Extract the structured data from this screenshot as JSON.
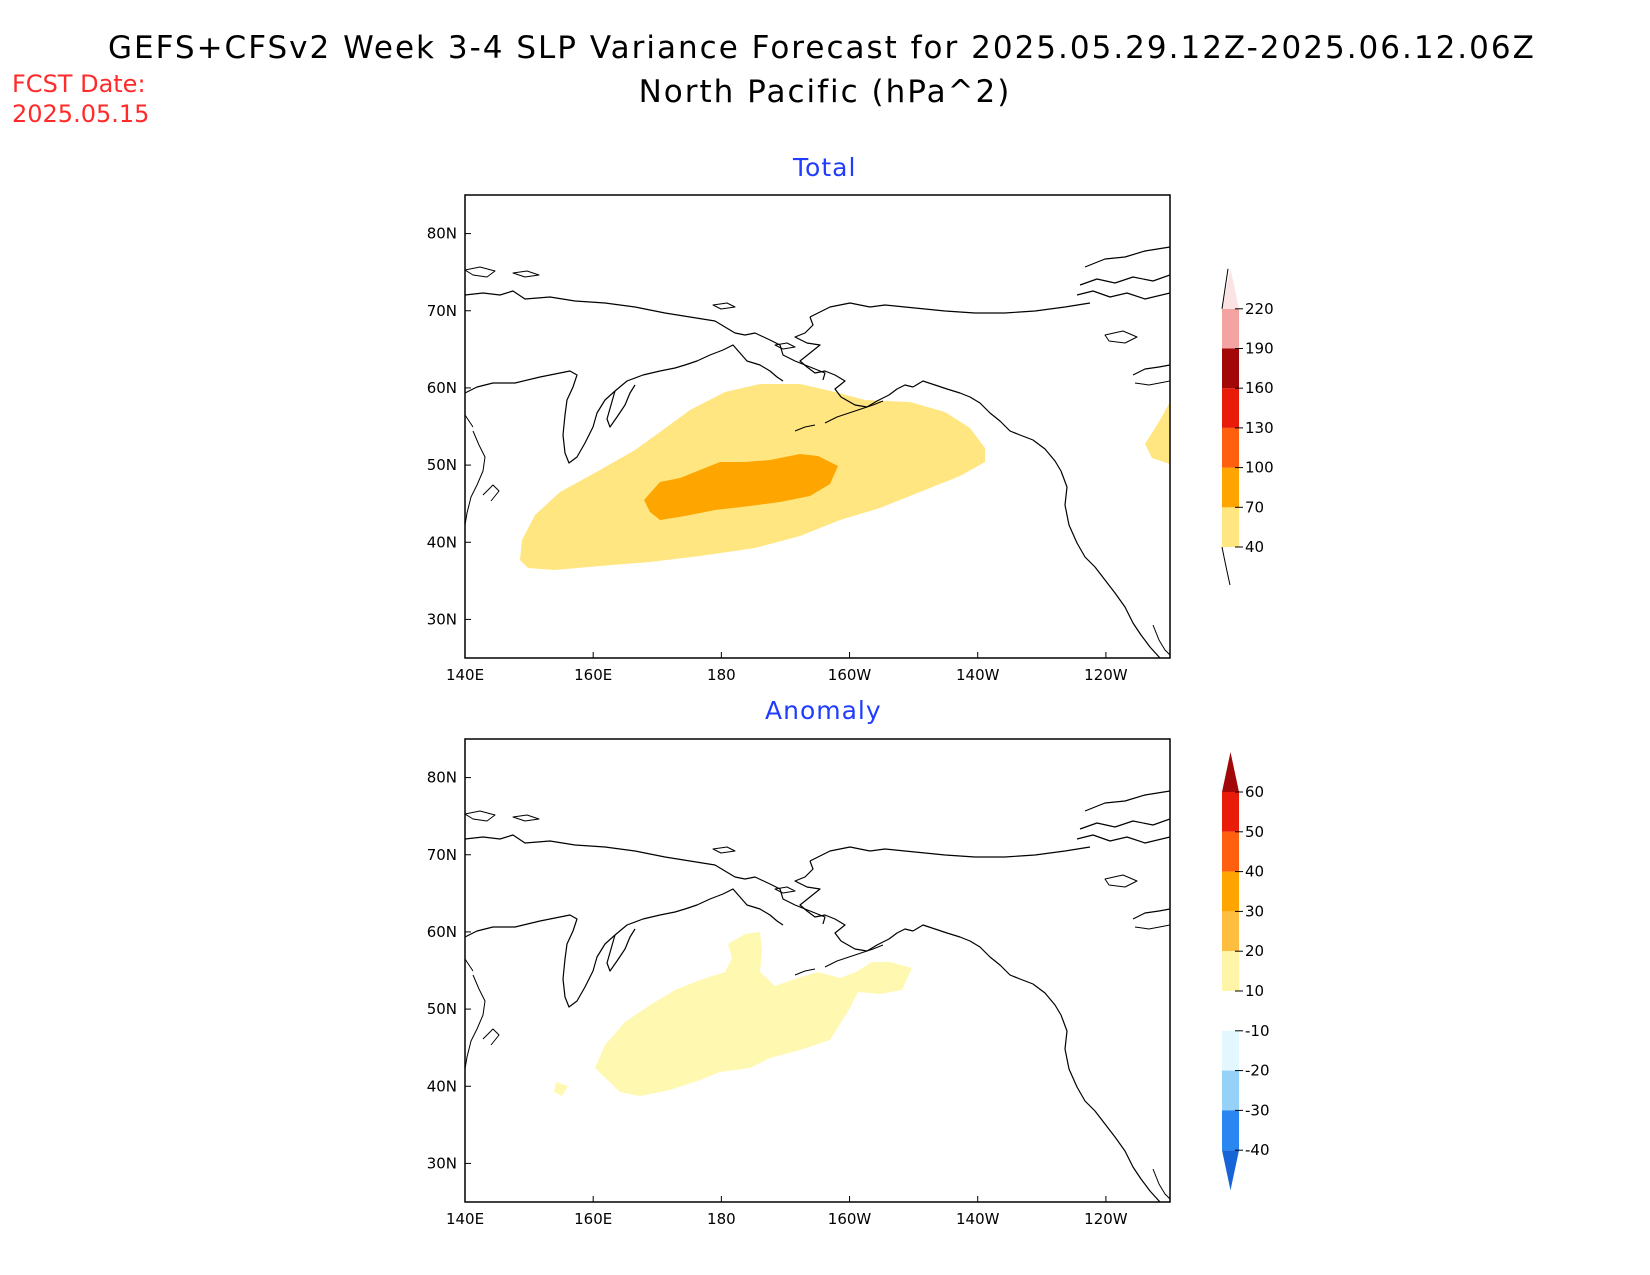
{
  "header": {
    "title": "GEFS+CFSv2 Week 3-4 SLP Variance Forecast for 2025.05.29.12Z-2025.06.12.06Z",
    "subtitle": "North Pacific (hPa^2)",
    "fcst_label": "FCST Date:",
    "fcst_value": "2025.05.15"
  },
  "axes": {
    "lat_labels": [
      "80N",
      "70N",
      "60N",
      "50N",
      "40N",
      "30N"
    ],
    "lon_labels": [
      "140E",
      "160E",
      "180",
      "160W",
      "140W",
      "120W"
    ],
    "lat_range": [
      25,
      85
    ],
    "lon_range": [
      140,
      250
    ]
  },
  "panels": [
    {
      "title": "Total",
      "legend_levels": [
        "40",
        "70",
        "100",
        "130",
        "160",
        "190",
        "220"
      ],
      "legend_colors": [
        "#ffe680",
        "#ffa500",
        "#ff6010",
        "#e81c08",
        "#a30808",
        "#f4a3a3",
        "#fbe3e3"
      ]
    },
    {
      "title": "Anomaly",
      "legend_levels": [
        "60",
        "50",
        "40",
        "30",
        "20",
        "10",
        "-10",
        "-20",
        "-30",
        "-40"
      ],
      "legend_colors": [
        "#a30808",
        "#e81c08",
        "#ff6010",
        "#ffa500",
        "#ffbe40",
        "#fff5a8",
        "#ffffff",
        "#e3f7ff",
        "#96d2f8",
        "#2a86f0",
        "#1764d6"
      ]
    }
  ],
  "colors": {
    "coast": "#000000",
    "title_blue": "#1f3cff",
    "fcst_red": "#ff2a2a"
  }
}
